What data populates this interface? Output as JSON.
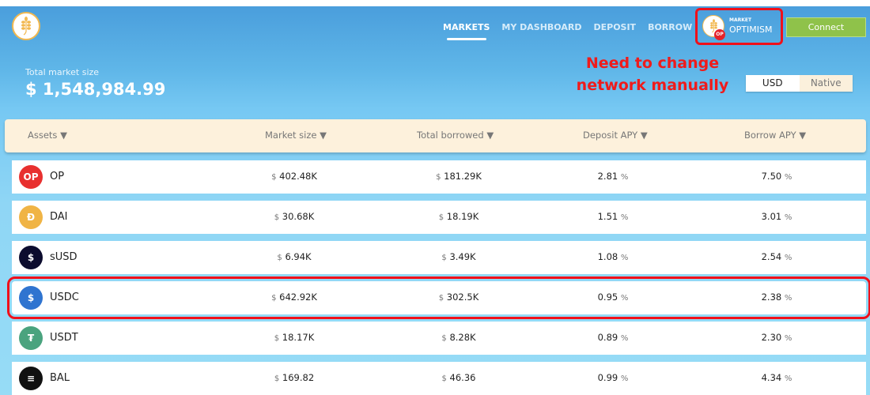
{
  "nav": {
    "items": [
      "MARKETS",
      "MY DASHBOARD",
      "DEPOSIT",
      "BORROW"
    ],
    "active": "MARKETS"
  },
  "market": {
    "label": "MARKET",
    "network": "OPTIMISM",
    "badge": "OP"
  },
  "connect_label": "Connect",
  "annotation": "Need to change network manually",
  "total": {
    "label": "Total market size",
    "value": "$ 1,548,984.99"
  },
  "currency_toggle": {
    "options": [
      "USD",
      "Native"
    ],
    "selected": "USD"
  },
  "table": {
    "headers": [
      "Assets ▼",
      "Market size ▼",
      "Total borrowed ▼",
      "Deposit APY ▼",
      "Borrow APY ▼"
    ],
    "rows": [
      {
        "symbol": "OP",
        "market_size": "402.48K",
        "total_borrowed": "181.29K",
        "deposit_apy": "2.81",
        "borrow_apy": "7.50",
        "icon": "OP",
        "color": "#e8302f"
      },
      {
        "symbol": "DAI",
        "market_size": "30.68K",
        "total_borrowed": "18.19K",
        "deposit_apy": "1.51",
        "borrow_apy": "3.01",
        "icon": "Đ",
        "color": "#f0b445"
      },
      {
        "symbol": "sUSD",
        "market_size": "6.94K",
        "total_borrowed": "3.49K",
        "deposit_apy": "1.08",
        "borrow_apy": "2.54",
        "icon": "$",
        "color": "#0c0c2e"
      },
      {
        "symbol": "USDC",
        "market_size": "642.92K",
        "total_borrowed": "302.5K",
        "deposit_apy": "0.95",
        "borrow_apy": "2.38",
        "icon": "$",
        "color": "#2f74d0",
        "highlighted": true
      },
      {
        "symbol": "USDT",
        "market_size": "18.17K",
        "total_borrowed": "8.28K",
        "deposit_apy": "0.89",
        "borrow_apy": "2.30",
        "icon": "₮",
        "color": "#4aa37e"
      },
      {
        "symbol": "BAL",
        "market_size": "169.82",
        "total_borrowed": "46.36",
        "deposit_apy": "0.99",
        "borrow_apy": "4.34",
        "icon": "≡",
        "color": "#111111"
      }
    ],
    "currency_symbol": "$",
    "percent_symbol": "%"
  }
}
